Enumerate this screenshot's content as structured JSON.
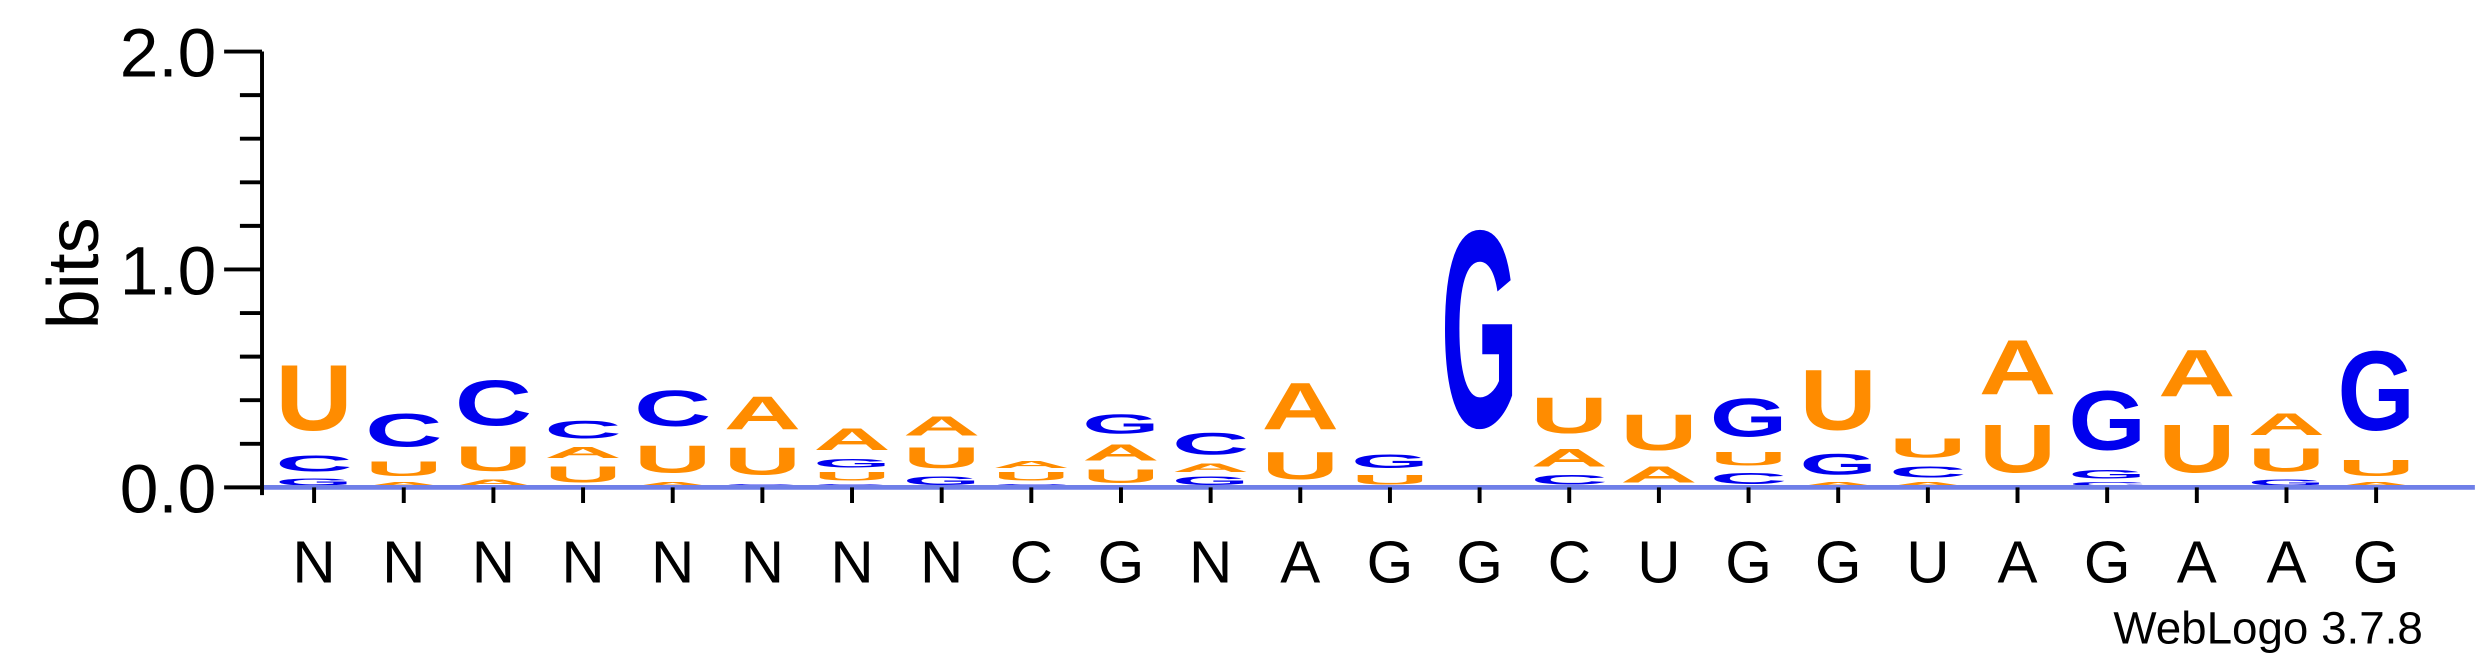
{
  "chart_data": {
    "type": "sequence-logo",
    "ylabel": "bits",
    "ylim": [
      0,
      2.0
    ],
    "yticks": [
      "0.0",
      "1.0",
      "2.0"
    ],
    "categories": [
      "N",
      "N",
      "N",
      "N",
      "N",
      "N",
      "N",
      "N",
      "C",
      "G",
      "N",
      "A",
      "G",
      "G",
      "C",
      "U",
      "G",
      "G",
      "U",
      "A",
      "G",
      "A",
      "A",
      "G"
    ],
    "footer": "WebLogo 3.7.8",
    "colors": {
      "A": "#ff8c00",
      "U": "#ff8c00",
      "C": "#0000ee",
      "G": "#0000ee"
    },
    "positions": [
      [
        {
          "l": "G",
          "h": 0.05
        },
        {
          "l": "C",
          "h": 0.12
        },
        {
          "l": "U",
          "h": 0.48
        }
      ],
      [
        {
          "l": "A",
          "h": 0.03
        },
        {
          "l": "U",
          "h": 0.11
        },
        {
          "l": "C",
          "h": 0.24
        }
      ],
      [
        {
          "l": "A",
          "h": 0.04
        },
        {
          "l": "U",
          "h": 0.18
        },
        {
          "l": "C",
          "h": 0.33
        }
      ],
      [
        {
          "l": "U",
          "h": 0.12
        },
        {
          "l": "A",
          "h": 0.08
        },
        {
          "l": "C",
          "h": 0.13
        }
      ],
      [
        {
          "l": "A",
          "h": 0.03
        },
        {
          "l": "U",
          "h": 0.2
        },
        {
          "l": "C",
          "h": 0.26
        }
      ],
      [
        {
          "l": "G",
          "h": 0.02
        },
        {
          "l": "U",
          "h": 0.2
        },
        {
          "l": "A",
          "h": 0.24
        }
      ],
      [
        {
          "l": "G",
          "h": 0.02
        },
        {
          "l": "U",
          "h": 0.06
        },
        {
          "l": "G",
          "h": 0.06
        },
        {
          "l": "A",
          "h": 0.16
        }
      ],
      [
        {
          "l": "G",
          "h": 0.06
        },
        {
          "l": "U",
          "h": 0.15
        },
        {
          "l": "A",
          "h": 0.14
        }
      ],
      [
        {
          "l": "C",
          "h": 0.02
        },
        {
          "l": "U",
          "h": 0.06
        },
        {
          "l": "A",
          "h": 0.05
        }
      ],
      [
        {
          "l": "U",
          "h": 0.1
        },
        {
          "l": "A",
          "h": 0.12
        },
        {
          "l": "G",
          "h": 0.14
        }
      ],
      [
        {
          "l": "G",
          "h": 0.06
        },
        {
          "l": "A",
          "h": 0.06
        },
        {
          "l": "C",
          "h": 0.16
        }
      ],
      [
        {
          "l": "U",
          "h": 0.2
        },
        {
          "l": "A",
          "h": 0.34
        }
      ],
      [
        {
          "l": "U",
          "h": 0.07
        },
        {
          "l": "G",
          "h": 0.1
        }
      ],
      [
        {
          "l": "G",
          "h": 1.44
        }
      ],
      [
        {
          "l": "C",
          "h": 0.07
        },
        {
          "l": "A",
          "h": 0.13
        },
        {
          "l": "U",
          "h": 0.26
        }
      ],
      [
        {
          "l": "A",
          "h": 0.12
        },
        {
          "l": "U",
          "h": 0.26
        }
      ],
      [
        {
          "l": "C",
          "h": 0.08
        },
        {
          "l": "U",
          "h": 0.1
        },
        {
          "l": "G",
          "h": 0.28
        }
      ],
      [
        {
          "l": "A",
          "h": 0.03
        },
        {
          "l": "G",
          "h": 0.15
        },
        {
          "l": "U",
          "h": 0.44
        }
      ],
      [
        {
          "l": "A",
          "h": 0.03
        },
        {
          "l": "C",
          "h": 0.08
        },
        {
          "l": "U",
          "h": 0.14
        }
      ],
      [
        {
          "l": "U",
          "h": 0.35
        },
        {
          "l": "A",
          "h": 0.4
        }
      ],
      [
        {
          "l": "C",
          "h": 0.03
        },
        {
          "l": "G",
          "h": 0.06
        },
        {
          "l": "G",
          "h": 0.43
        }
      ],
      [
        {
          "l": "U",
          "h": 0.35
        },
        {
          "l": "A",
          "h": 0.34
        }
      ],
      [
        {
          "l": "G",
          "h": 0.04
        },
        {
          "l": "U",
          "h": 0.17
        },
        {
          "l": "A",
          "h": 0.16
        }
      ],
      [
        {
          "l": "A",
          "h": 0.03
        },
        {
          "l": "U",
          "h": 0.12
        },
        {
          "l": "G",
          "h": 0.58
        }
      ]
    ]
  }
}
